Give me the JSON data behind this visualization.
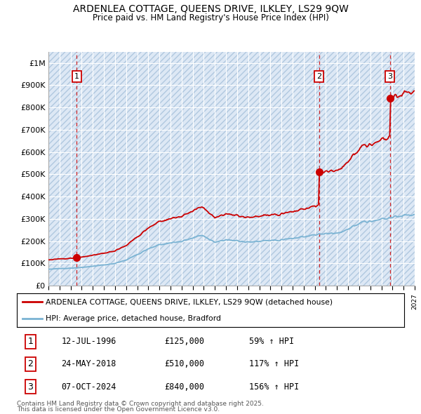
{
  "title": "ARDENLEA COTTAGE, QUEENS DRIVE, ILKLEY, LS29 9QW",
  "subtitle": "Price paid vs. HM Land Registry's House Price Index (HPI)",
  "legend_line1": "ARDENLEA COTTAGE, QUEENS DRIVE, ILKLEY, LS29 9QW (detached house)",
  "legend_line2": "HPI: Average price, detached house, Bradford",
  "sale1_label": "1",
  "sale1_date": "12-JUL-1996",
  "sale1_price": 125000,
  "sale1_pct": "59% ↑ HPI",
  "sale1_year": 1996.54,
  "sale2_label": "2",
  "sale2_date": "24-MAY-2018",
  "sale2_price": 510000,
  "sale2_pct": "117% ↑ HPI",
  "sale2_year": 2018.39,
  "sale3_label": "3",
  "sale3_date": "07-OCT-2024",
  "sale3_price": 840000,
  "sale3_pct": "156% ↑ HPI",
  "sale3_year": 2024.77,
  "xmin": 1994.0,
  "xmax": 2027.0,
  "ymin": 0,
  "ymax": 1050000,
  "ytick_vals": [
    0,
    100000,
    200000,
    300000,
    400000,
    500000,
    600000,
    700000,
    800000,
    900000,
    1000000
  ],
  "ytick_labels": [
    "£0",
    "£100K",
    "£200K",
    "£300K",
    "£400K",
    "£500K",
    "£600K",
    "£700K",
    "£800K",
    "£900K",
    "£1M"
  ],
  "red": "#cc0000",
  "blue": "#7ab3d3",
  "bg": "#dde8f5",
  "hatch_edge": "#b0c8df",
  "grid_color": "#ffffff",
  "footnote_line1": "Contains HM Land Registry data © Crown copyright and database right 2025.",
  "footnote_line2": "This data is licensed under the Open Government Licence v3.0."
}
